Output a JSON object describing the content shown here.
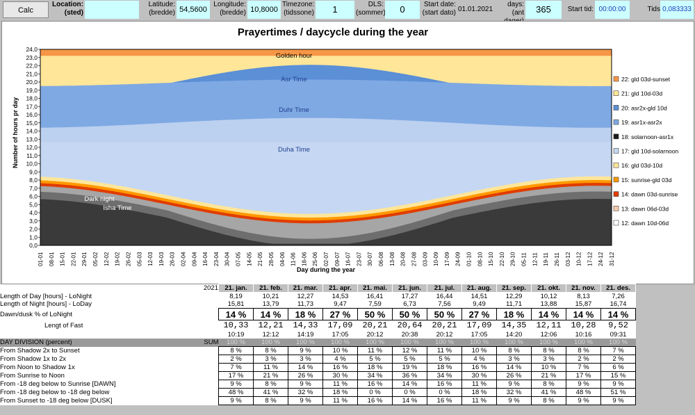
{
  "toolbar": {
    "calc_label": "Calc",
    "location_label": "Location:\n(sted)",
    "location_value": "",
    "latitude_label": "Latitude:\n(bredde)",
    "latitude_value": "54,5600",
    "longitude_label": "Longitude:\n(bredde)",
    "longitude_value": "10,8000",
    "timezone_label": "Timezone:\n(tidssone)",
    "timezone_value": "1",
    "dls_label": "DLS:\n(sommer)",
    "dls_value": "0",
    "startdate_label": "Start date:\n(start dato)",
    "startdate_value": "01.01.2021",
    "days_label": "days:\n(ant dager)",
    "days_value": "365",
    "starttid_label": "Start tid:",
    "starttid_value": "00:00:00",
    "tidssteg_label": "Tids steg:",
    "tidssteg_value": "0,083333"
  },
  "chart_data": {
    "type": "area",
    "title": "Prayertimes / daycycle during the year",
    "xlabel": "Day during the year",
    "ylabel": "Number of hours pr day",
    "ylim": [
      0,
      24
    ],
    "yticks": [
      "0,0",
      "1,0",
      "2,0",
      "3,0",
      "4,0",
      "5,0",
      "6,0",
      "7,0",
      "8,0",
      "9,0",
      "10,0",
      "11,0",
      "12,0",
      "13,0",
      "14,0",
      "15,0",
      "16,0",
      "17,0",
      "18,0",
      "19,0",
      "20,0",
      "21,0",
      "22,0",
      "23,0",
      "24,0"
    ],
    "xticks": [
      "01-01",
      "08-01",
      "15-01",
      "22-01",
      "29-01",
      "05-02",
      "12-02",
      "19-02",
      "26-02",
      "05-03",
      "12-03",
      "19-03",
      "26-03",
      "02-04",
      "09-04",
      "16-04",
      "23-04",
      "30-04",
      "07-05",
      "14-05",
      "21-05",
      "28-05",
      "04-06",
      "11-06",
      "18-06",
      "25-06",
      "02-07",
      "09-07",
      "16-07",
      "23-07",
      "30-07",
      "06-08",
      "13-08",
      "20-08",
      "27-08",
      "03-09",
      "10-09",
      "17-09",
      "24-09",
      "01-10",
      "08-10",
      "15-10",
      "22-10",
      "29-10",
      "05-11",
      "12-11",
      "19-11",
      "26-11",
      "03-12",
      "10-12",
      "17-12",
      "24-12",
      "31-12"
    ],
    "annotations": [
      "Golden hour",
      "Asr Time",
      "Duhr Time",
      "Duha Time",
      "Dark night",
      "Isha Time"
    ],
    "grid": false,
    "legend_position": "right",
    "legend": [
      {
        "name": "22: gld 03d-sunset",
        "color": "#f79646"
      },
      {
        "name": "21: gld 10d-03d",
        "color": "#ffe699"
      },
      {
        "name": "20: asr2x-gld 10d",
        "color": "#5b8fd6"
      },
      {
        "name": "19: asr1x-asr2x",
        "color": "#7fa9e3"
      },
      {
        "name": "18: solarnoon-asr1x",
        "color": "#1a1a1a"
      },
      {
        "name": "17: gld 10d-solarnoon",
        "color": "#c5d7f2"
      },
      {
        "name": "16: gld 03d-10d",
        "color": "#ffe699"
      },
      {
        "name": "15: sunrise-gld 03d",
        "color": "#ff9900"
      },
      {
        "name": "14: dawn 03d-sunrise",
        "color": "#e03c00"
      },
      {
        "name": "13: dawn 06d-03d",
        "color": "#f8cbad"
      },
      {
        "name": "12: dawn 10d-06d",
        "color": "#ffffff"
      }
    ],
    "series_jan_jun": {
      "months_mid": [
        "21. jan.",
        "21. feb.",
        "21. mar.",
        "21. apr.",
        "21. mai.",
        "21. jun.",
        "21. jul.",
        "21. aug.",
        "21. sep.",
        "21. okt.",
        "21. nov.",
        "21. des."
      ],
      "day_length_hours": [
        8.19,
        10.21,
        12.27,
        14.53,
        16.41,
        17.27,
        16.44,
        14.51,
        12.29,
        10.12,
        8.13,
        7.26
      ]
    }
  },
  "table": {
    "year": "2021",
    "months": [
      "21. jan.",
      "21. feb.",
      "21. mar.",
      "21. apr.",
      "21. mai.",
      "21. jun.",
      "21. jul.",
      "21. aug.",
      "21. sep.",
      "21. okt.",
      "21. nov.",
      "21. des."
    ],
    "rows": [
      {
        "label": "Length of Day [hours] - LoNight",
        "values": [
          "8,19",
          "10,21",
          "12,27",
          "14,53",
          "16,41",
          "17,27",
          "16,44",
          "14,51",
          "12,29",
          "10,12",
          "8,13",
          "7,26"
        ]
      },
      {
        "label": "Length of Night [hours] - LoDay",
        "values": [
          "15,81",
          "13,79",
          "11,73",
          "9,47",
          "7,59",
          "6,73",
          "7,56",
          "9,49",
          "11,71",
          "13,88",
          "15,87",
          "16,74"
        ]
      }
    ],
    "dawn_label": "Dawn/dusk % of LoNight",
    "dawn_values": [
      "14 %",
      "14 %",
      "18 %",
      "27 %",
      "50 %",
      "50 %",
      "50 %",
      "27 %",
      "18 %",
      "14 %",
      "14 %",
      "14 %"
    ],
    "fast_label": "Lengt of Fast",
    "fast_values": [
      "10,33",
      "12,21",
      "14,33",
      "17,09",
      "20,21",
      "20,64",
      "20,21",
      "17,09",
      "14,35",
      "12,11",
      "10,28",
      "9,52"
    ],
    "fast_times": [
      "10:19",
      "12:12",
      "14:19",
      "17:05",
      "20:12",
      "20:38",
      "20:12",
      "17:05",
      "14:20",
      "12:06",
      "10:16",
      "09:31"
    ],
    "division_label": "DAY DIVISION (percent)",
    "sum_label": "SUM",
    "division_values": [
      "100 %",
      "100 %",
      "100 %",
      "100 %",
      "100 %",
      "100 %",
      "100 %",
      "100 %",
      "100 %",
      "100 %",
      "100 %",
      "100 %"
    ],
    "pct_rows": [
      {
        "label": "From Shadow 2x to Sunset",
        "values": [
          "8 %",
          "8 %",
          "9 %",
          "10 %",
          "11 %",
          "12 %",
          "11 %",
          "10 %",
          "8 %",
          "8 %",
          "8 %",
          "7 %"
        ]
      },
      {
        "label": "From Shadow 1x to 2x",
        "values": [
          "2 %",
          "3 %",
          "3 %",
          "4 %",
          "5 %",
          "5 %",
          "5 %",
          "4 %",
          "3 %",
          "3 %",
          "2 %",
          "2 %"
        ]
      },
      {
        "label": "From Noon to Shadow 1x",
        "values": [
          "7 %",
          "11 %",
          "14 %",
          "16 %",
          "18 %",
          "19 %",
          "18 %",
          "16 %",
          "14 %",
          "10 %",
          "7 %",
          "6 %"
        ]
      },
      {
        "label": "From Sunrise to Noon",
        "values": [
          "17 %",
          "21 %",
          "26 %",
          "30 %",
          "34 %",
          "36 %",
          "34 %",
          "30 %",
          "26 %",
          "21 %",
          "17 %",
          "15 %"
        ]
      },
      {
        "label": "From -18 deg below to Sunrise [DAWN]",
        "values": [
          "9 %",
          "8 %",
          "9 %",
          "11 %",
          "16 %",
          "14 %",
          "16 %",
          "11 %",
          "9 %",
          "8 %",
          "9 %",
          "9 %"
        ]
      },
      {
        "label": "From -18 deg below to -18 deg below",
        "values": [
          "48 %",
          "41 %",
          "32 %",
          "18 %",
          "0 %",
          "0 %",
          "0 %",
          "18 %",
          "32 %",
          "41 %",
          "48 %",
          "51 %"
        ]
      },
      {
        "label": "From Sunset to -18 deg below [DUSK]",
        "values": [
          "9 %",
          "8 %",
          "9 %",
          "11 %",
          "16 %",
          "14 %",
          "16 %",
          "11 %",
          "9 %",
          "8 %",
          "9 %",
          "9 %"
        ]
      }
    ]
  }
}
